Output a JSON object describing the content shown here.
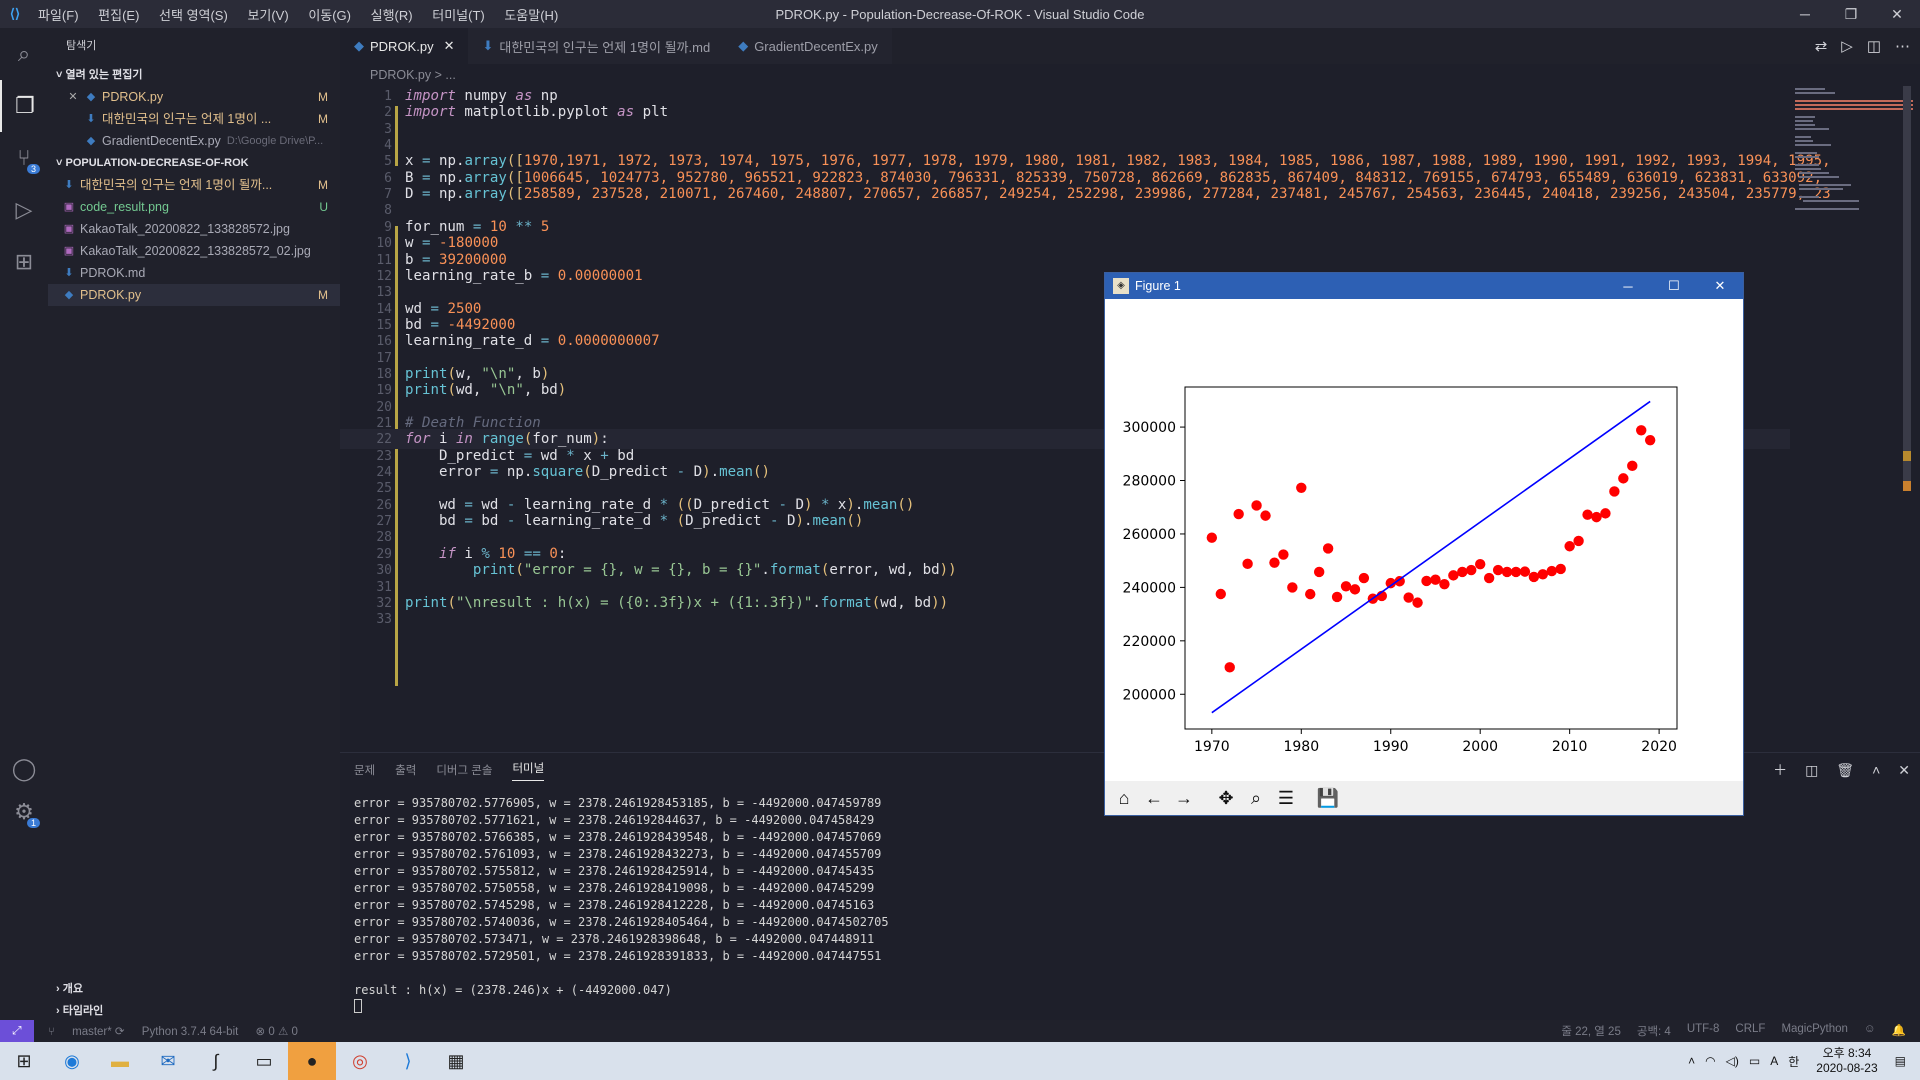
{
  "window": {
    "title": "PDROK.py - Population-Decrease-Of-ROK - Visual Studio Code",
    "menu": [
      "파일(F)",
      "편집(E)",
      "선택 영역(S)",
      "보기(V)",
      "이동(G)",
      "실행(R)",
      "터미널(T)",
      "도움말(H)"
    ]
  },
  "sidebar": {
    "header": "탐색기",
    "open_editors_label": "열려 있는 편집기",
    "open_editors": [
      {
        "icon": "python-icon",
        "name": "PDROK.py",
        "status": "M",
        "closeable": true
      },
      {
        "icon": "markdown-icon",
        "name": "대한민국의 인구는 언제 1명이 ...",
        "status": "M"
      },
      {
        "icon": "python-icon",
        "name": "GradientDecentEx.py",
        "desc": "D:\\Google Drive\\P..."
      }
    ],
    "project_label": "POPULATION-DECREASE-OF-ROK",
    "files": [
      {
        "icon": "markdown-icon",
        "name": "대한민국의 인구는 언제 1명이 될까...",
        "status": "M"
      },
      {
        "icon": "image-icon",
        "name": "code_result.png",
        "status": "U"
      },
      {
        "icon": "image-icon",
        "name": "KakaoTalk_20200822_133828572.jpg",
        "status": ""
      },
      {
        "icon": "image-icon",
        "name": "KakaoTalk_20200822_133828572_02.jpg",
        "status": ""
      },
      {
        "icon": "markdown-icon",
        "name": "PDROK.md",
        "status": ""
      },
      {
        "icon": "python-icon",
        "name": "PDROK.py",
        "status": "M"
      }
    ],
    "outline_label": "개요",
    "timeline_label": "타임라인"
  },
  "tabs": [
    {
      "name": "PDROK.py",
      "active": true
    },
    {
      "name": "대한민국의 인구는 언제 1명이 될까.md",
      "active": false
    },
    {
      "name": "GradientDecentEx.py",
      "active": false
    }
  ],
  "breadcrumb": "PDROK.py > ...",
  "editor": {
    "line_numbers": [
      "1",
      "2",
      "3",
      "4",
      "5",
      "6",
      "7",
      "8",
      "9",
      "10",
      "11",
      "12",
      "13",
      "14",
      "15",
      "16",
      "17",
      "18",
      "19",
      "20",
      "21",
      "22",
      "23",
      "24",
      "25",
      "26",
      "27",
      "28",
      "29",
      "30",
      "31",
      "32",
      "33"
    ]
  },
  "panel": {
    "tabs": [
      "문제",
      "출력",
      "디버그 콘솔",
      "터미널"
    ],
    "active_tab": "터미널",
    "output": [
      "error = 935780702.5776905, w = 2378.2461928453185, b = -4492000.047459789",
      "error = 935780702.5771621, w = 2378.246192844637, b = -4492000.047458429",
      "error = 935780702.5766385, w = 2378.2461928439548, b = -4492000.047457069",
      "error = 935780702.5761093, w = 2378.2461928432273, b = -4492000.047455709",
      "error = 935780702.5755812, w = 2378.2461928425914, b = -4492000.04745435",
      "error = 935780702.5750558, w = 2378.2461928419098, b = -4492000.04745299",
      "error = 935780702.5745298, w = 2378.2461928412228, b = -4492000.04745163",
      "error = 935780702.5740036, w = 2378.2461928405464, b = -4492000.0474502705",
      "error = 935780702.573471, w = 2378.2461928398648, b = -4492000.047448911",
      "error = 935780702.5729501, w = 2378.2461928391833, b = -4492000.047447551",
      "",
      "result : h(x) = (2378.246)x + (-4492000.047)"
    ]
  },
  "status": {
    "branch": "master*",
    "python": "Python 3.7.4 64-bit",
    "problems": "⊗ 0 ⚠ 0",
    "position": "줄 22, 열 25",
    "spaces": "공백: 4",
    "encoding": "UTF-8",
    "eol": "CRLF",
    "language": "MagicPython"
  },
  "figure": {
    "title": "Figure 1"
  },
  "chart_data": {
    "type": "scatter",
    "xlim": [
      1967,
      2022
    ],
    "ylim": [
      187000,
      315000
    ],
    "xticks": [
      "1970",
      "1980",
      "1990",
      "2000",
      "2010",
      "2020"
    ],
    "yticks": [
      "200000",
      "220000",
      "240000",
      "260000",
      "280000",
      "300000"
    ],
    "scatter_color": "#ff0000",
    "line_color": "#0000ff",
    "points": [
      [
        1970,
        258589
      ],
      [
        1971,
        237528
      ],
      [
        1972,
        210071
      ],
      [
        1973,
        267460
      ],
      [
        1974,
        248807
      ],
      [
        1975,
        270657
      ],
      [
        1976,
        266857
      ],
      [
        1977,
        249254
      ],
      [
        1978,
        252298
      ],
      [
        1979,
        239986
      ],
      [
        1980,
        277284
      ],
      [
        1981,
        237481
      ],
      [
        1982,
        245767
      ],
      [
        1983,
        254563
      ],
      [
        1984,
        236445
      ],
      [
        1985,
        240418
      ],
      [
        1986,
        239256
      ],
      [
        1987,
        243504
      ],
      [
        1988,
        235779
      ],
      [
        1989,
        236800
      ],
      [
        1990,
        241600
      ],
      [
        1991,
        242300
      ],
      [
        1992,
        236200
      ],
      [
        1993,
        234300
      ],
      [
        1994,
        242400
      ],
      [
        1995,
        242900
      ],
      [
        1996,
        241200
      ],
      [
        1997,
        244500
      ],
      [
        1998,
        245800
      ],
      [
        1999,
        246500
      ],
      [
        2000,
        248700
      ],
      [
        2001,
        243500
      ],
      [
        2002,
        246500
      ],
      [
        2003,
        245800
      ],
      [
        2004,
        245800
      ],
      [
        2005,
        245900
      ],
      [
        2006,
        243900
      ],
      [
        2007,
        244900
      ],
      [
        2008,
        246100
      ],
      [
        2009,
        246900
      ],
      [
        2010,
        255400
      ],
      [
        2011,
        257400
      ],
      [
        2012,
        267200
      ],
      [
        2013,
        266300
      ],
      [
        2014,
        267700
      ],
      [
        2015,
        275900
      ],
      [
        2016,
        280800
      ],
      [
        2017,
        285500
      ],
      [
        2018,
        298800
      ],
      [
        2019,
        295100
      ]
    ],
    "line": [
      [
        1970,
        193100
      ],
      [
        2019,
        309600
      ]
    ]
  }
}
